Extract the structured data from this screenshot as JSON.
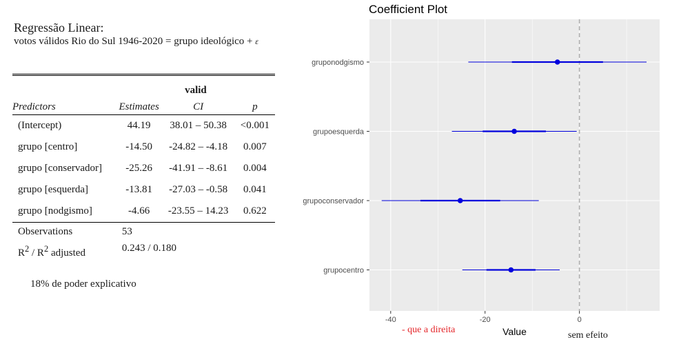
{
  "regression": {
    "title": "Regressão Linear:",
    "subtitle": "votos válidos Rio do Sul 1946-2020 = grupo ideológico +",
    "subtitle_symbol": "ε",
    "dependent_variable": "valid",
    "headers": [
      "Predictors",
      "Estimates",
      "CI",
      "p"
    ],
    "rows": [
      {
        "predictor": "(Intercept)",
        "estimate": "44.19",
        "ci": "38.01 – 50.38",
        "p": "<0.001",
        "p_bold": true
      },
      {
        "predictor": "grupo [centro]",
        "estimate": "-14.50",
        "ci": "-24.82 – -4.18",
        "p": "0.007",
        "p_bold": true
      },
      {
        "predictor": "grupo [conservador]",
        "estimate": "-25.26",
        "ci": "-41.91 – -8.61",
        "p": "0.004",
        "p_bold": true
      },
      {
        "predictor": "grupo [esquerda]",
        "estimate": "-13.81",
        "ci": "-27.03 – -0.58",
        "p": "0.041",
        "p_bold": true
      },
      {
        "predictor": "grupo [nodgismo]",
        "estimate": "-4.66",
        "ci": "-23.55 – 14.23",
        "p": "0.622",
        "p_bold": false
      }
    ],
    "observations_label": "Observations",
    "observations_value": "53",
    "r2_label_a": "R",
    "r2_label_sup": "2",
    "r2_label_mid": " / R",
    "r2_label_sup2": "2",
    "r2_label_end": " adjusted",
    "r2_value": "0.243 / 0.180",
    "note": "18% de poder explicativo"
  },
  "chart_data": {
    "type": "scatter",
    "title": "Coefficient Plot",
    "xlabel": "Value",
    "ylabel": "",
    "xlim": [
      -44.5,
      17
    ],
    "xticks": [
      -40,
      -20,
      0
    ],
    "grid": true,
    "reference_line": {
      "x": 0,
      "style": "dashed"
    },
    "categories": [
      "gruponodgismo",
      "grupoesquerda",
      "grupoconservador",
      "grupocentro"
    ],
    "points": [
      {
        "category": "gruponodgismo",
        "estimate": -4.66,
        "inner": [
          -14.3,
          5.0
        ],
        "outer": [
          -23.55,
          14.23
        ]
      },
      {
        "category": "grupoesquerda",
        "estimate": -13.81,
        "inner": [
          -20.5,
          -7.1
        ],
        "outer": [
          -27.03,
          -0.58
        ]
      },
      {
        "category": "grupoconservador",
        "estimate": -25.26,
        "inner": [
          -33.7,
          -16.8
        ],
        "outer": [
          -41.91,
          -8.61
        ]
      },
      {
        "category": "grupocentro",
        "estimate": -14.5,
        "inner": [
          -19.7,
          -9.3
        ],
        "outer": [
          -24.82,
          -4.18
        ]
      }
    ],
    "annotations": {
      "left": "- que a direita",
      "zero": "sem efeito"
    },
    "colors": {
      "panel": "#ebebeb",
      "grid": "#ffffff",
      "point": "#0000dd",
      "reference": "#b0b0b0",
      "annotation_left": "#e4262a",
      "axis_text": "#4d4d4d"
    }
  }
}
